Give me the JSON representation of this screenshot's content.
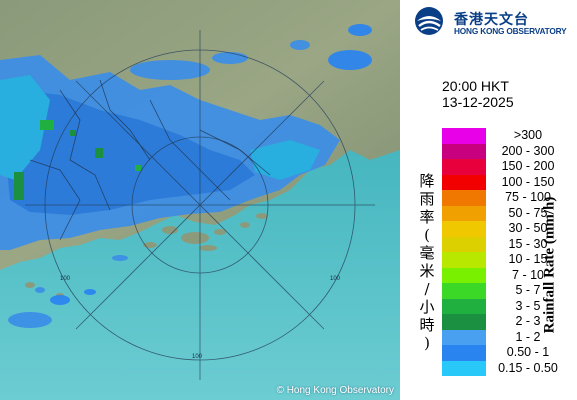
{
  "logo": {
    "chinese": "香港天文台",
    "english": "HONG KONG OBSERVATORY"
  },
  "timestamp": {
    "time": "20:00 HKT",
    "date": "13-12-2025"
  },
  "legend": {
    "title_en": "Rainfall Rate (mm/h)",
    "title_cn": [
      "降",
      "雨",
      "率",
      "(",
      "毫",
      "米",
      "/",
      "小",
      "時",
      ")"
    ],
    "bins": [
      {
        "label": ">300",
        "color": "#e800e8"
      },
      {
        "label": "200 - 300",
        "color": "#c80080"
      },
      {
        "label": "150 - 200",
        "color": "#e8003c"
      },
      {
        "label": "100 - 150",
        "color": "#f20000"
      },
      {
        "label": "75 - 100",
        "color": "#f07800"
      },
      {
        "label": "50 - 75",
        "color": "#f0a000"
      },
      {
        "label": "30 - 50",
        "color": "#f0c800"
      },
      {
        "label": "15 - 30",
        "color": "#dcd000"
      },
      {
        "label": "10 - 15",
        "color": "#b8e800"
      },
      {
        "label": "7 - 10",
        "color": "#78f000"
      },
      {
        "label": "5 - 7",
        "color": "#3cd828"
      },
      {
        "label": "3 - 5",
        "color": "#20b040"
      },
      {
        "label": "2 - 3",
        "color": "#1a9040"
      },
      {
        "label": "1 - 2",
        "color": "#4aa0f0"
      },
      {
        "label": "0.50 - 1",
        "color": "#2a84f0"
      },
      {
        "label": "0.15 - 0.50",
        "color": "#28c8f8"
      }
    ]
  },
  "map": {
    "range_labels": [
      "100",
      "100",
      "100"
    ],
    "copyright": "© Hong Kong Observatory"
  }
}
